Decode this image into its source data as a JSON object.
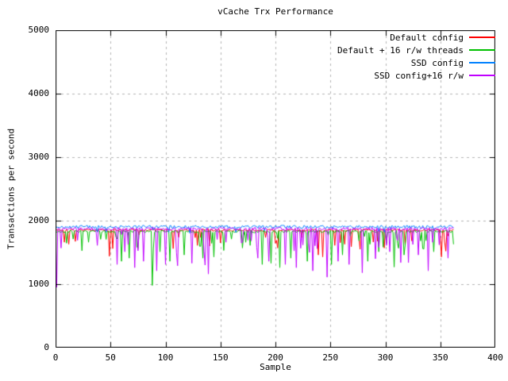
{
  "chart_data": {
    "type": "line",
    "title": "vCache Trx Performance",
    "xlabel": "Sample",
    "ylabel": "Transactions per second",
    "xlim": [
      0,
      400
    ],
    "ylim": [
      0,
      5000
    ],
    "xticks": [
      0,
      50,
      100,
      150,
      200,
      250,
      300,
      350,
      400
    ],
    "yticks": [
      0,
      1000,
      2000,
      3000,
      4000,
      5000
    ],
    "xtick_labels": [
      "0",
      "50",
      "100",
      "150",
      "200",
      "250",
      "300",
      "350",
      "400"
    ],
    "ytick_labels": [
      "0",
      "1000",
      "2000",
      "3000",
      "4000",
      "5000"
    ],
    "grid": true,
    "grid_color": "#b3b3b3",
    "border_color": "#000000",
    "legend_position": "top-right-inside",
    "n_samples": 363,
    "series": [
      {
        "name": "Default config",
        "color": "#ff0000",
        "seed": 101,
        "baseline": 1852,
        "noise": 18,
        "dip_rate": 0.06,
        "dip_max": 240,
        "spikes": [
          [
            8,
            1660
          ],
          [
            12,
            1630
          ],
          [
            49,
            1440
          ],
          [
            52,
            1560
          ],
          [
            107,
            1560
          ],
          [
            129,
            1610
          ],
          [
            140,
            1600
          ],
          [
            150,
            1650
          ],
          [
            202,
            1570
          ],
          [
            239,
            1460
          ],
          [
            243,
            1430
          ],
          [
            254,
            1610
          ],
          [
            269,
            1590
          ],
          [
            277,
            1550
          ],
          [
            299,
            1570
          ],
          [
            318,
            1620
          ],
          [
            351,
            1430
          ],
          [
            355,
            1520
          ]
        ]
      },
      {
        "name": "Default + 16 r/w threads",
        "color": "#00c000",
        "seed": 202,
        "baseline": 1830,
        "noise": 18,
        "dip_rate": 0.1,
        "dip_max": 330,
        "spikes": [
          [
            16,
            1710
          ],
          [
            30,
            1660
          ],
          [
            60,
            1360
          ],
          [
            67,
            1410
          ],
          [
            75,
            1560
          ],
          [
            88,
            980
          ],
          [
            95,
            1510
          ],
          [
            104,
            1360
          ],
          [
            117,
            1460
          ],
          [
            134,
            1410
          ],
          [
            144,
            1430
          ],
          [
            160,
            1710
          ],
          [
            177,
            1610
          ],
          [
            188,
            1310
          ],
          [
            196,
            1330
          ],
          [
            204,
            1260
          ],
          [
            214,
            1410
          ],
          [
            229,
            1360
          ],
          [
            251,
            1310
          ],
          [
            261,
            1460
          ],
          [
            284,
            1360
          ],
          [
            294,
            1510
          ],
          [
            308,
            1270
          ],
          [
            317,
            1460
          ],
          [
            334,
            1560
          ],
          [
            344,
            1510
          ]
        ]
      },
      {
        "name": "SSD config",
        "color": "#0080ff",
        "seed": 303,
        "baseline": 1902,
        "noise": 24,
        "dip_rate": 0.03,
        "dip_max": 90,
        "spikes": []
      },
      {
        "name": "SSD config+16 r/w",
        "color": "#c000ff",
        "seed": 404,
        "baseline": 1872,
        "noise": 22,
        "dip_rate": 0.1,
        "dip_max": 380,
        "spikes": [
          [
            1,
            950
          ],
          [
            20,
            1690
          ],
          [
            38,
            1610
          ],
          [
            56,
            1310
          ],
          [
            63,
            1510
          ],
          [
            72,
            1260
          ],
          [
            80,
            1360
          ],
          [
            92,
            1210
          ],
          [
            100,
            1310
          ],
          [
            111,
            1290
          ],
          [
            124,
            1330
          ],
          [
            136,
            1300
          ],
          [
            139,
            1160
          ],
          [
            155,
            1660
          ],
          [
            170,
            1660
          ],
          [
            184,
            1410
          ],
          [
            194,
            1360
          ],
          [
            209,
            1310
          ],
          [
            219,
            1260
          ],
          [
            234,
            1210
          ],
          [
            247,
            1110
          ],
          [
            257,
            1360
          ],
          [
            267,
            1310
          ],
          [
            279,
            1180
          ],
          [
            291,
            1400
          ],
          [
            304,
            1510
          ],
          [
            314,
            1340
          ],
          [
            321,
            1340
          ],
          [
            330,
            1460
          ],
          [
            339,
            1210
          ],
          [
            349,
            1620
          ],
          [
            357,
            1410
          ]
        ]
      }
    ]
  }
}
